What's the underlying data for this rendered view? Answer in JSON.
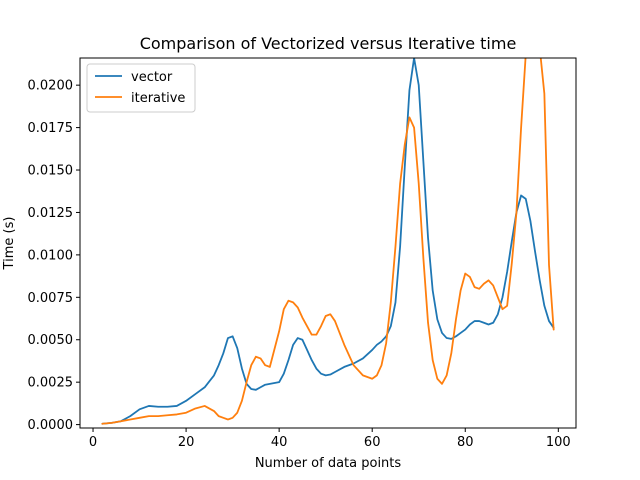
{
  "chart_data": {
    "type": "line",
    "title": "Comparison of Vectorized versus Iterative time",
    "xlabel": "Number of data points",
    "ylabel": "Time (s)",
    "xlim": [
      -2.8,
      103.8
    ],
    "ylim": [
      -0.0002,
      0.0216
    ],
    "x_ticks": [
      0,
      20,
      40,
      60,
      80,
      100
    ],
    "x_tick_labels": [
      "0",
      "20",
      "40",
      "60",
      "80",
      "100"
    ],
    "y_ticks": [
      0.0,
      0.0025,
      0.005,
      0.0075,
      0.01,
      0.0125,
      0.015,
      0.0175,
      0.02
    ],
    "y_tick_labels": [
      "0.0000",
      "0.0025",
      "0.0050",
      "0.0075",
      "0.0100",
      "0.0125",
      "0.0150",
      "0.0175",
      "0.0200"
    ],
    "grid": false,
    "legend_position": "top-left",
    "x": [
      2,
      4,
      6,
      8,
      10,
      12,
      14,
      16,
      18,
      20,
      22,
      24,
      26,
      27,
      28,
      29,
      30,
      31,
      32,
      33,
      34,
      35,
      36,
      37,
      38,
      40,
      41,
      42,
      43,
      44,
      45,
      46,
      47,
      48,
      49,
      50,
      51,
      52,
      54,
      56,
      58,
      60,
      61,
      62,
      63,
      64,
      65,
      66,
      67,
      68,
      69,
      70,
      71,
      72,
      73,
      74,
      75,
      76,
      77,
      78,
      79,
      80,
      81,
      82,
      83,
      84,
      85,
      86,
      87,
      88,
      89,
      90,
      91,
      92,
      93,
      94,
      95,
      96,
      97,
      98,
      99
    ],
    "series": [
      {
        "name": "vector",
        "color": "#1f77b4",
        "values": [
          5e-05,
          0.0001,
          0.0002,
          0.0005,
          0.0009,
          0.0011,
          0.00105,
          0.00105,
          0.0011,
          0.0014,
          0.0018,
          0.0022,
          0.0029,
          0.0035,
          0.0042,
          0.0051,
          0.0052,
          0.0045,
          0.0033,
          0.0024,
          0.0021,
          0.00205,
          0.0022,
          0.00235,
          0.0024,
          0.0025,
          0.003,
          0.0038,
          0.0047,
          0.0051,
          0.005,
          0.0044,
          0.0038,
          0.0033,
          0.003,
          0.0029,
          0.00295,
          0.0031,
          0.0034,
          0.0036,
          0.0039,
          0.0044,
          0.0047,
          0.0049,
          0.0052,
          0.0058,
          0.0072,
          0.0105,
          0.0152,
          0.0197,
          0.0216,
          0.02,
          0.0155,
          0.011,
          0.0079,
          0.0062,
          0.0054,
          0.0051,
          0.00505,
          0.0052,
          0.0054,
          0.0056,
          0.0059,
          0.0061,
          0.0061,
          0.006,
          0.0059,
          0.006,
          0.0065,
          0.0075,
          0.009,
          0.0108,
          0.0125,
          0.0135,
          0.0133,
          0.012,
          0.0102,
          0.0085,
          0.007,
          0.0061,
          0.0057
        ]
      },
      {
        "name": "iterative",
        "color": "#ff7f0e",
        "values": [
          5e-05,
          0.0001,
          0.0002,
          0.0003,
          0.0004,
          0.0005,
          0.0005,
          0.00055,
          0.0006,
          0.0007,
          0.00095,
          0.0011,
          0.0008,
          0.0005,
          0.0004,
          0.0003,
          0.0004,
          0.0007,
          0.0014,
          0.0025,
          0.0035,
          0.004,
          0.0039,
          0.0035,
          0.0034,
          0.0055,
          0.0068,
          0.0073,
          0.0072,
          0.0069,
          0.0063,
          0.0058,
          0.0053,
          0.0053,
          0.0058,
          0.0064,
          0.0065,
          0.0061,
          0.0047,
          0.0035,
          0.0029,
          0.0027,
          0.0029,
          0.0035,
          0.0048,
          0.0072,
          0.0105,
          0.0142,
          0.0165,
          0.0181,
          0.0175,
          0.0142,
          0.0098,
          0.006,
          0.0038,
          0.0027,
          0.0024,
          0.0029,
          0.0042,
          0.0062,
          0.0079,
          0.0089,
          0.0087,
          0.0081,
          0.008,
          0.0083,
          0.0085,
          0.0082,
          0.0075,
          0.0068,
          0.007,
          0.0095,
          0.0125,
          0.0175,
          0.0218,
          0.0225,
          0.0225,
          0.0222,
          0.0195,
          0.0094,
          0.0056
        ]
      }
    ]
  }
}
